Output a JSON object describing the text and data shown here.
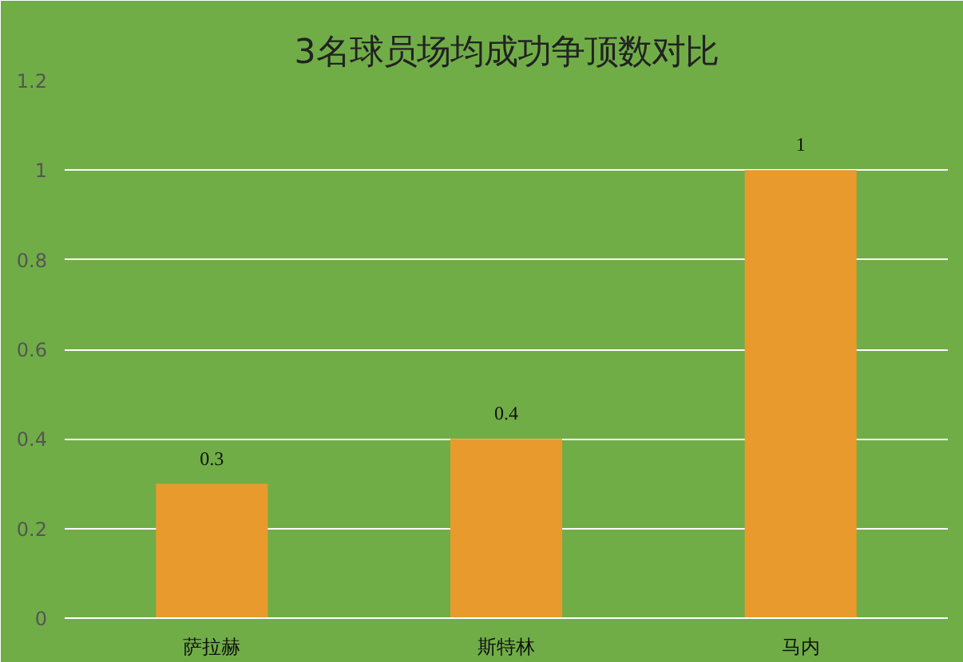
{
  "chart_data": {
    "type": "bar",
    "title": "3名球员场均成功争顶数对比",
    "categories": [
      "萨拉赫",
      "斯特林",
      "马内"
    ],
    "values": [
      0.3,
      0.4,
      1
    ],
    "color": "#e99a2c",
    "ylim": [
      0,
      1.2
    ],
    "yticks": [
      0,
      0.2,
      0.4,
      0.6,
      0.8,
      1,
      1.2
    ],
    "grid": "y",
    "data_labels": true
  }
}
